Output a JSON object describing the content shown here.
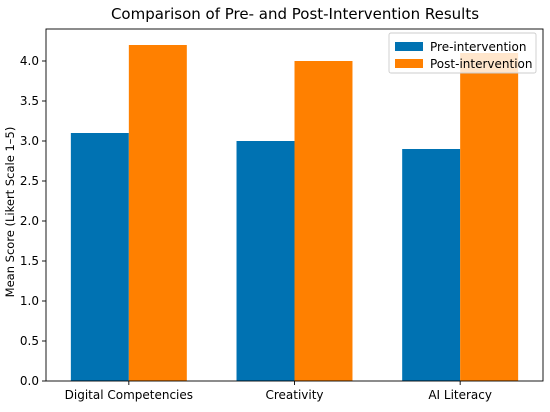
{
  "chart_data": {
    "type": "bar",
    "title": "Comparison of Pre- and Post-Intervention Results",
    "xlabel": "",
    "ylabel": "Mean Score (Likert Scale 1–5)",
    "categories": [
      "Digital Competencies",
      "Creativity",
      "AI Literacy"
    ],
    "series": [
      {
        "name": "Pre-intervention",
        "values": [
          3.1,
          3.0,
          2.9
        ],
        "color": "#0072B2"
      },
      {
        "name": "Post-intervention",
        "values": [
          4.2,
          4.0,
          4.1
        ],
        "color": "#FF8000"
      }
    ],
    "ylim": [
      0,
      4.4
    ],
    "yticks": [
      "0.0",
      "0.5",
      "1.0",
      "1.5",
      "2.0",
      "2.5",
      "3.0",
      "3.5",
      "4.0"
    ],
    "grid": false,
    "legend_position": "top-right"
  }
}
